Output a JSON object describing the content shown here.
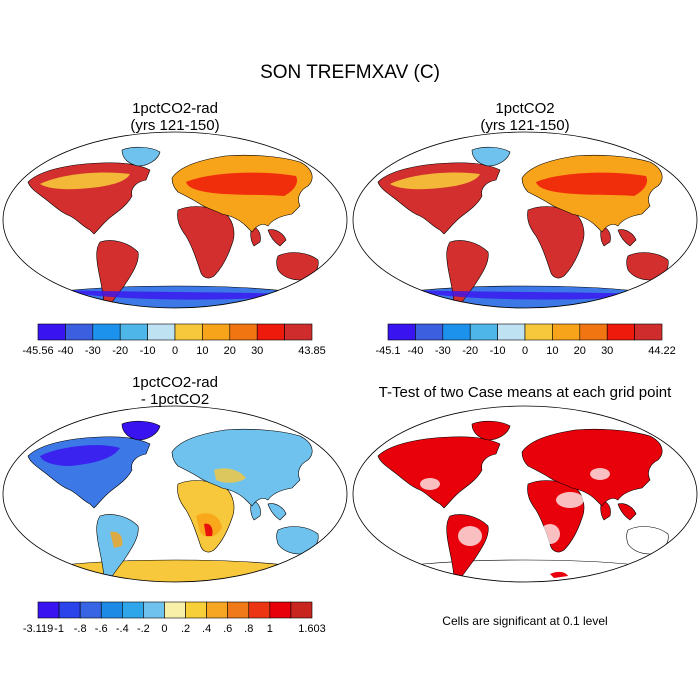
{
  "title": "SON TREFMXAV (C)",
  "panels": [
    {
      "id": "p1",
      "title_line1": "1pctCO2-rad",
      "title_line2": "(yrs 121-150)",
      "colorbar": {
        "colors": [
          "#3a14f0",
          "#3c5fe0",
          "#1c92ec",
          "#4fb6ea",
          "#bfe2f2",
          "#f7c83b",
          "#f8a41a",
          "#f17612",
          "#ee1a0b",
          "#cf2d2d"
        ],
        "labels": [
          "-45.56",
          "-40",
          "-30",
          "-20",
          "-10",
          "0",
          "10",
          "20",
          "30",
          "43.85"
        ]
      }
    },
    {
      "id": "p2",
      "title_line1": "1pctCO2",
      "title_line2": "(yrs 121-150)",
      "colorbar": {
        "colors": [
          "#3a14f0",
          "#3c5fe0",
          "#1c92ec",
          "#4fb6ea",
          "#bfe2f2",
          "#f7c83b",
          "#f8a41a",
          "#f17612",
          "#ee1a0b",
          "#cf2d2d"
        ],
        "labels": [
          "-45.1",
          "-40",
          "-30",
          "-20",
          "-10",
          "0",
          "10",
          "20",
          "30",
          "44.22"
        ]
      }
    },
    {
      "id": "p3",
      "title_line1": "1pctCO2-rad",
      "title_line2": "- 1pctCO2",
      "colorbar": {
        "colors": [
          "#3a14f0",
          "#2a43ea",
          "#3765e4",
          "#1d8ae6",
          "#30a6ea",
          "#6fc2ee",
          "#f8f0a8",
          "#f7cf38",
          "#f6a623",
          "#f07a1a",
          "#ec3513",
          "#e7000a",
          "#c9251f"
        ],
        "labels": [
          "-3.119",
          "-1",
          "-.8",
          "-.6",
          "-.4",
          "-.2",
          "0",
          ".2",
          ".4",
          ".6",
          ".8",
          "1",
          "1.603"
        ]
      }
    },
    {
      "id": "p4",
      "title_line1": "T-Test of two Case means at each grid point",
      "note": "Cells are significant at 0.1 level"
    }
  ],
  "colors": {
    "warm": "#d32f2f",
    "hot": "#ee1a0b",
    "orange": "#f8a41a",
    "yellow": "#f7c83b",
    "cold": "#3a14f0",
    "blue": "#3c78e6",
    "lightblue": "#6fc2ee",
    "sig": "#e8000a"
  }
}
